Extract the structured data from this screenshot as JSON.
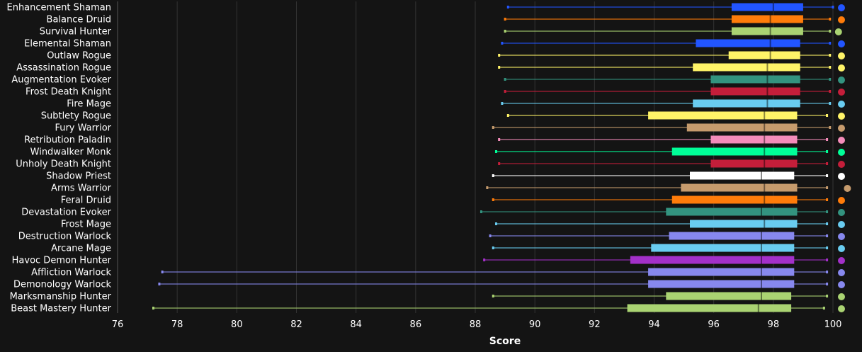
{
  "chart_data": {
    "type": "boxplot",
    "xlabel": "Score",
    "xlim": [
      76,
      100
    ],
    "xticks": [
      76,
      78,
      80,
      82,
      84,
      86,
      88,
      90,
      92,
      94,
      96,
      98,
      100
    ],
    "grid": "vertical",
    "series": [
      {
        "name": "Enhancement Shaman",
        "color": "#2255ff",
        "min": 89.1,
        "q1": 96.6,
        "median": 98.0,
        "q3": 99.0,
        "max": 100.0,
        "dot": 100.0
      },
      {
        "name": "Balance Druid",
        "color": "#ff7c0a",
        "min": 89.0,
        "q1": 96.6,
        "median": 97.9,
        "q3": 99.0,
        "max": 99.9,
        "dot": 100.0
      },
      {
        "name": "Survival Hunter",
        "color": "#aad372",
        "min": 89.0,
        "q1": 96.6,
        "median": 97.9,
        "q3": 99.0,
        "max": 99.9,
        "dot": 99.9
      },
      {
        "name": "Elemental Shaman",
        "color": "#2255ff",
        "min": 88.9,
        "q1": 95.4,
        "median": 97.9,
        "q3": 98.9,
        "max": 99.9,
        "dot": 100.0
      },
      {
        "name": "Outlaw Rogue",
        "color": "#fff468",
        "min": 88.8,
        "q1": 96.5,
        "median": 97.9,
        "q3": 98.9,
        "max": 99.9,
        "dot": 100.0
      },
      {
        "name": "Assassination Rogue",
        "color": "#fff468",
        "min": 88.8,
        "q1": 95.3,
        "median": 97.8,
        "q3": 98.9,
        "max": 99.9,
        "dot": 100.0
      },
      {
        "name": "Augmentation Evoker",
        "color": "#33937f",
        "min": 89.0,
        "q1": 95.9,
        "median": 97.8,
        "q3": 98.9,
        "max": 99.9,
        "dot": 100.0
      },
      {
        "name": "Frost Death Knight",
        "color": "#c41e3a",
        "min": 89.0,
        "q1": 95.9,
        "median": 97.8,
        "q3": 98.9,
        "max": 99.9,
        "dot": 100.0
      },
      {
        "name": "Fire Mage",
        "color": "#69ccf0",
        "min": 88.9,
        "q1": 95.3,
        "median": 97.8,
        "q3": 98.9,
        "max": 99.9,
        "dot": 100.0
      },
      {
        "name": "Subtlety Rogue",
        "color": "#fff468",
        "min": 89.1,
        "q1": 93.8,
        "median": 97.7,
        "q3": 98.8,
        "max": 99.8,
        "dot": 100.0
      },
      {
        "name": "Fury Warrior",
        "color": "#c69b6d",
        "min": 88.6,
        "q1": 95.1,
        "median": 97.7,
        "q3": 98.8,
        "max": 99.9,
        "dot": 100.0
      },
      {
        "name": "Retribution Paladin",
        "color": "#f48cba",
        "min": 88.8,
        "q1": 95.9,
        "median": 97.7,
        "q3": 98.8,
        "max": 99.8,
        "dot": 100.0
      },
      {
        "name": "Windwalker Monk",
        "color": "#00ff98",
        "min": 88.7,
        "q1": 94.6,
        "median": 97.7,
        "q3": 98.8,
        "max": 99.8,
        "dot": 100.0
      },
      {
        "name": "Unholy Death Knight",
        "color": "#c41e3a",
        "min": 88.8,
        "q1": 95.9,
        "median": 97.7,
        "q3": 98.8,
        "max": 99.8,
        "dot": 100.0
      },
      {
        "name": "Shadow Priest",
        "color": "#ffffff",
        "min": 88.6,
        "q1": 95.2,
        "median": 97.6,
        "q3": 98.7,
        "max": 99.8,
        "dot": 100.0
      },
      {
        "name": "Arms Warrior",
        "color": "#c69b6d",
        "min": 88.4,
        "q1": 94.9,
        "median": 97.7,
        "q3": 98.8,
        "max": 99.8,
        "dot": 100.2
      },
      {
        "name": "Feral Druid",
        "color": "#ff7c0a",
        "min": 88.6,
        "q1": 94.6,
        "median": 97.7,
        "q3": 98.8,
        "max": 99.8,
        "dot": 100.0
      },
      {
        "name": "Devastation Evoker",
        "color": "#33937f",
        "min": 88.2,
        "q1": 94.4,
        "median": 97.6,
        "q3": 98.8,
        "max": 99.8,
        "dot": 100.0
      },
      {
        "name": "Frost Mage",
        "color": "#69ccf0",
        "min": 88.7,
        "q1": 95.2,
        "median": 97.7,
        "q3": 98.8,
        "max": 99.8,
        "dot": 100.0
      },
      {
        "name": "Destruction Warlock",
        "color": "#8788ee",
        "min": 88.5,
        "q1": 94.5,
        "median": 97.6,
        "q3": 98.7,
        "max": 99.8,
        "dot": 100.0
      },
      {
        "name": "Arcane Mage",
        "color": "#69ccf0",
        "min": 88.6,
        "q1": 93.9,
        "median": 97.6,
        "q3": 98.7,
        "max": 99.8,
        "dot": 100.0
      },
      {
        "name": "Havoc Demon Hunter",
        "color": "#a330c9",
        "min": 88.3,
        "q1": 93.2,
        "median": 97.6,
        "q3": 98.7,
        "max": 99.8,
        "dot": 100.0
      },
      {
        "name": "Affliction Warlock",
        "color": "#8788ee",
        "min": 77.5,
        "q1": 93.8,
        "median": 97.6,
        "q3": 98.7,
        "max": 99.8,
        "dot": 100.0
      },
      {
        "name": "Demonology Warlock",
        "color": "#8788ee",
        "min": 77.4,
        "q1": 93.8,
        "median": 97.6,
        "q3": 98.7,
        "max": 99.8,
        "dot": 100.0
      },
      {
        "name": "Marksmanship Hunter",
        "color": "#aad372",
        "min": 88.6,
        "q1": 94.4,
        "median": 97.6,
        "q3": 98.6,
        "max": 99.8,
        "dot": 100.0
      },
      {
        "name": "Beast Mastery Hunter",
        "color": "#aad372",
        "min": 77.2,
        "q1": 93.1,
        "median": 97.5,
        "q3": 98.6,
        "max": 99.7,
        "dot": 100.0
      }
    ]
  }
}
